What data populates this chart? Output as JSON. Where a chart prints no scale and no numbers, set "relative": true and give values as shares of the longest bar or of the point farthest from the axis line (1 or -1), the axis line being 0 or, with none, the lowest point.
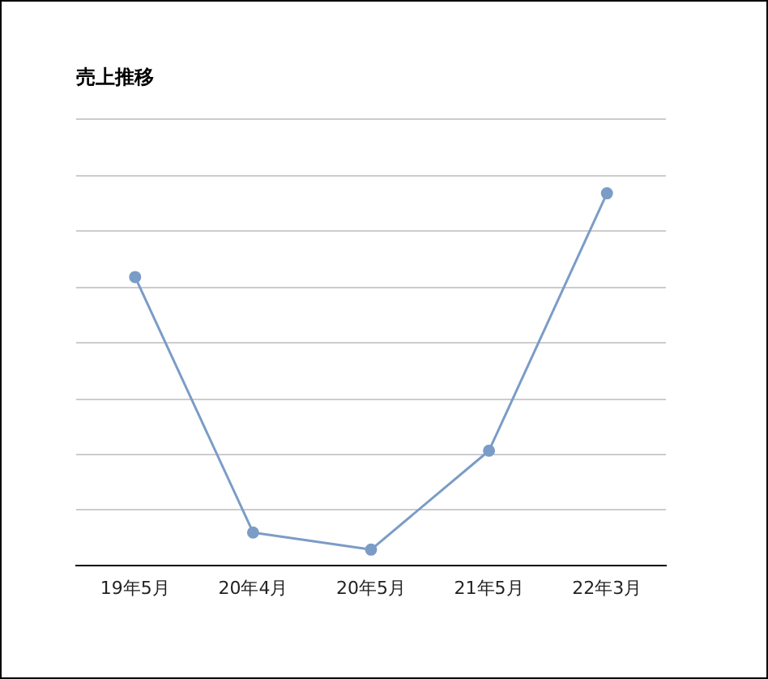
{
  "chart_data": {
    "type": "line",
    "title": "売上推移",
    "categories": [
      "19年5月",
      "20年4月",
      "20年5月",
      "21年5月",
      "22年3月"
    ],
    "series": [
      {
        "color": "#7b9cc7",
        "values": [
          0.775,
          0.088,
          0.042,
          0.308,
          1
        ]
      }
    ],
    "relative": true,
    "grid": "y",
    "legend": false,
    "marker": "circle"
  }
}
